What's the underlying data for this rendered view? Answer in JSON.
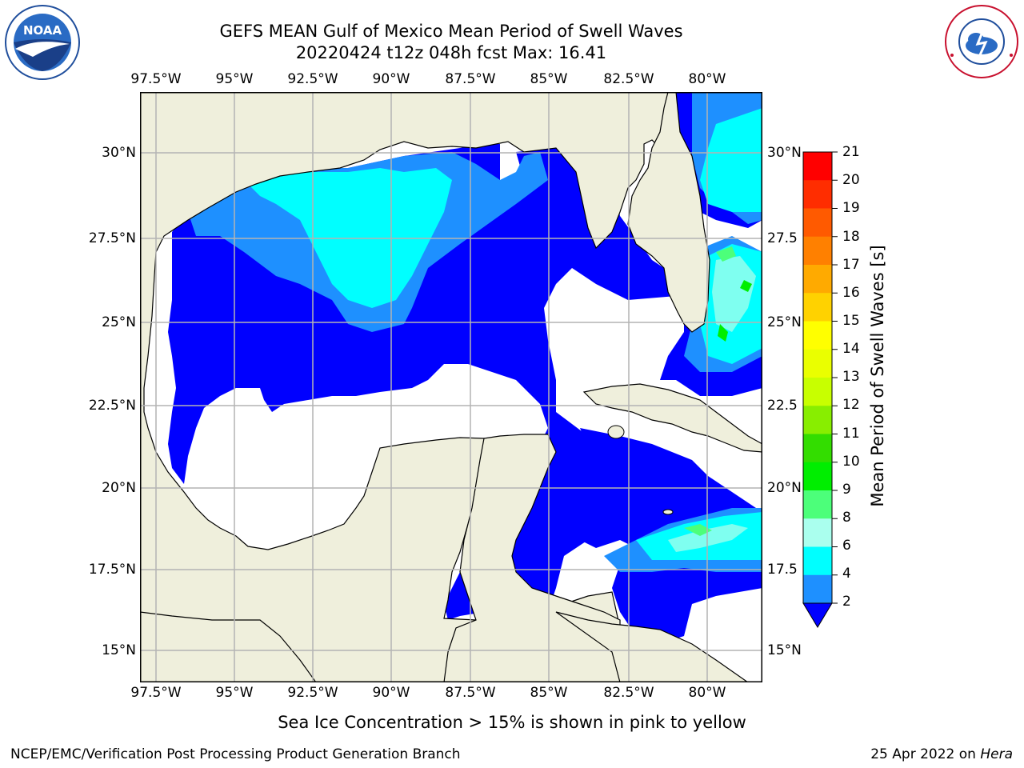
{
  "title": {
    "line1": "GEFS MEAN Gulf of Mexico Mean Period of Swell Waves",
    "line2": "20220424 t12z 048h fcst   Max: 16.41"
  },
  "map": {
    "lon_labels": [
      "97.5°W",
      "95°W",
      "92.5°W",
      "90°W",
      "87.5°W",
      "85°W",
      "82.5°W",
      "80°W"
    ],
    "lat_labels_left": [
      "30°N",
      "27.5°N",
      "25°N",
      "22.5°N",
      "20°N",
      "17.5°N",
      "15°N"
    ],
    "lat_labels_right": [
      "30°N",
      "27.5",
      "25°N",
      "22.5",
      "20°N",
      "17.5",
      "15°N"
    ],
    "colors": {
      "land": "#efefdc",
      "water_low": "#ffffff",
      "c2_4": "#0000ff",
      "c4_6": "#1e90ff",
      "c6_8": "#00ffff",
      "c8_9": "#7ffff0",
      "c9_10": "#4cff7a",
      "c10_11": "#00ee00",
      "c12_14": "#c8ff00",
      "c14_15": "#eaff00",
      "grid": "#b4b4b4"
    }
  },
  "colorbar": {
    "label": "Mean Period of Swell Waves [s]",
    "ticks": [
      "21",
      "20",
      "19",
      "18",
      "17",
      "16",
      "15",
      "14",
      "13",
      "12",
      "11",
      "10",
      "9",
      "8",
      "6",
      "4",
      "2"
    ],
    "colors": [
      "#0000ff",
      "#1e6bff",
      "#00c8ff",
      "#00ffff",
      "#7ffff0",
      "#aaffee",
      "#4cff7a",
      "#00ee00",
      "#33dd00",
      "#88ee00",
      "#c8ff00",
      "#eaff00",
      "#ffff00",
      "#ffd200",
      "#ffaa00",
      "#ff8000",
      "#ff5a00",
      "#ff2d00",
      "#ff0000"
    ]
  },
  "notes": {
    "ice": "Sea Ice Concentration > 15% is shown in pink to yellow",
    "footer_left": "NCEP/EMC/Verification Post Processing Product Generation Branch",
    "footer_date": "25 Apr 2022 on ",
    "footer_host": "Hera"
  },
  "logos": {
    "noaa": "NOAA",
    "nws": "NATIONAL WEATHER SERVICE"
  }
}
